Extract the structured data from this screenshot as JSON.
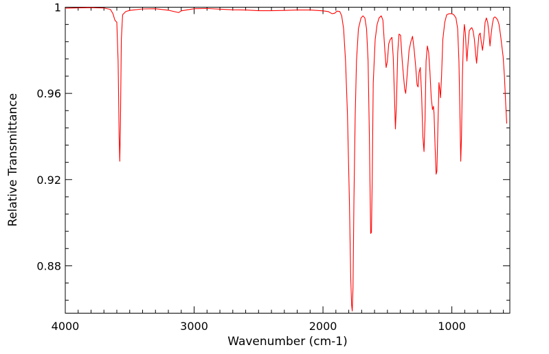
{
  "chart_data": {
    "type": "line",
    "xlabel": "Wavenumber (cm-1)",
    "ylabel": "Relative Transmittance",
    "xlim": [
      4000,
      550
    ],
    "ylim": [
      0.858,
      1.0
    ],
    "x_reversed": true,
    "x_ticks": [
      4000,
      3000,
      2000,
      1000
    ],
    "x_tick_labels": [
      "4000",
      "3000",
      "2000",
      "1000"
    ],
    "y_ticks": [
      1.0,
      0.96,
      0.92,
      0.88
    ],
    "y_tick_labels": [
      "1",
      "0.96",
      "0.92",
      "0.88"
    ],
    "grid": false,
    "legend": "none",
    "series": [
      {
        "color": "#ff0000",
        "points": [
          [
            4000,
            0.9995
          ],
          [
            3900,
            0.9997
          ],
          [
            3800,
            0.9998
          ],
          [
            3700,
            0.9996
          ],
          [
            3650,
            0.999
          ],
          [
            3630,
            0.997
          ],
          [
            3615,
            0.994
          ],
          [
            3600,
            0.993
          ],
          [
            3590,
            0.975
          ],
          [
            3582,
            0.94
          ],
          [
            3577,
            0.9285
          ],
          [
            3572,
            0.945
          ],
          [
            3565,
            0.985
          ],
          [
            3555,
            0.9965
          ],
          [
            3530,
            0.998
          ],
          [
            3500,
            0.9985
          ],
          [
            3400,
            0.9992
          ],
          [
            3300,
            0.9993
          ],
          [
            3200,
            0.9986
          ],
          [
            3120,
            0.9975
          ],
          [
            3100,
            0.9983
          ],
          [
            3000,
            0.9993
          ],
          [
            2900,
            0.9994
          ],
          [
            2800,
            0.9991
          ],
          [
            2700,
            0.9988
          ],
          [
            2600,
            0.9987
          ],
          [
            2500,
            0.9984
          ],
          [
            2400,
            0.9984
          ],
          [
            2300,
            0.9985
          ],
          [
            2200,
            0.9987
          ],
          [
            2100,
            0.9987
          ],
          [
            2000,
            0.9983
          ],
          [
            1960,
            0.998
          ],
          [
            1930,
            0.997
          ],
          [
            1910,
            0.9972
          ],
          [
            1890,
            0.9982
          ],
          [
            1870,
            0.998
          ],
          [
            1855,
            0.996
          ],
          [
            1840,
            0.99
          ],
          [
            1825,
            0.975
          ],
          [
            1810,
            0.95
          ],
          [
            1795,
            0.91
          ],
          [
            1785,
            0.875
          ],
          [
            1778,
            0.862
          ],
          [
            1773,
            0.859
          ],
          [
            1767,
            0.87
          ],
          [
            1760,
            0.91
          ],
          [
            1750,
            0.95
          ],
          [
            1740,
            0.975
          ],
          [
            1725,
            0.99
          ],
          [
            1705,
            0.995
          ],
          [
            1690,
            0.996
          ],
          [
            1675,
            0.995
          ],
          [
            1662,
            0.99
          ],
          [
            1650,
            0.975
          ],
          [
            1640,
            0.94
          ],
          [
            1630,
            0.895
          ],
          [
            1624,
            0.8955
          ],
          [
            1618,
            0.92
          ],
          [
            1610,
            0.965
          ],
          [
            1595,
            0.985
          ],
          [
            1580,
            0.992
          ],
          [
            1565,
            0.995
          ],
          [
            1548,
            0.996
          ],
          [
            1535,
            0.994
          ],
          [
            1520,
            0.98
          ],
          [
            1510,
            0.972
          ],
          [
            1500,
            0.975
          ],
          [
            1490,
            0.983
          ],
          [
            1478,
            0.985
          ],
          [
            1465,
            0.986
          ],
          [
            1455,
            0.977
          ],
          [
            1446,
            0.96
          ],
          [
            1438,
            0.9435
          ],
          [
            1430,
            0.955
          ],
          [
            1420,
            0.979
          ],
          [
            1410,
            0.9875
          ],
          [
            1398,
            0.987
          ],
          [
            1385,
            0.975
          ],
          [
            1375,
            0.968
          ],
          [
            1366,
            0.962
          ],
          [
            1358,
            0.96
          ],
          [
            1345,
            0.97
          ],
          [
            1332,
            0.98
          ],
          [
            1318,
            0.984
          ],
          [
            1305,
            0.9865
          ],
          [
            1292,
            0.98
          ],
          [
            1280,
            0.972
          ],
          [
            1270,
            0.964
          ],
          [
            1262,
            0.963
          ],
          [
            1255,
            0.9695
          ],
          [
            1245,
            0.972
          ],
          [
            1235,
            0.96
          ],
          [
            1225,
            0.94
          ],
          [
            1216,
            0.933
          ],
          [
            1208,
            0.948
          ],
          [
            1200,
            0.975
          ],
          [
            1190,
            0.982
          ],
          [
            1180,
            0.979
          ],
          [
            1170,
            0.97
          ],
          [
            1160,
            0.958
          ],
          [
            1150,
            0.9525
          ],
          [
            1143,
            0.954
          ],
          [
            1138,
            0.9505
          ],
          [
            1130,
            0.935
          ],
          [
            1122,
            0.9225
          ],
          [
            1116,
            0.924
          ],
          [
            1108,
            0.945
          ],
          [
            1100,
            0.965
          ],
          [
            1094,
            0.962
          ],
          [
            1088,
            0.958
          ],
          [
            1080,
            0.968
          ],
          [
            1070,
            0.985
          ],
          [
            1055,
            0.993
          ],
          [
            1040,
            0.9965
          ],
          [
            1020,
            0.997
          ],
          [
            1000,
            0.997
          ],
          [
            985,
            0.9965
          ],
          [
            968,
            0.995
          ],
          [
            955,
            0.99
          ],
          [
            945,
            0.975
          ],
          [
            937,
            0.95
          ],
          [
            931,
            0.9285
          ],
          [
            925,
            0.94
          ],
          [
            918,
            0.968
          ],
          [
            910,
            0.985
          ],
          [
            903,
            0.992
          ],
          [
            895,
            0.988
          ],
          [
            888,
            0.98
          ],
          [
            883,
            0.975
          ],
          [
            875,
            0.982
          ],
          [
            865,
            0.989
          ],
          [
            855,
            0.99
          ],
          [
            845,
            0.9905
          ],
          [
            835,
            0.989
          ],
          [
            825,
            0.985
          ],
          [
            815,
            0.978
          ],
          [
            808,
            0.974
          ],
          [
            800,
            0.98
          ],
          [
            790,
            0.987
          ],
          [
            780,
            0.988
          ],
          [
            772,
            0.984
          ],
          [
            762,
            0.98
          ],
          [
            752,
            0.985
          ],
          [
            742,
            0.993
          ],
          [
            732,
            0.995
          ],
          [
            722,
            0.993
          ],
          [
            712,
            0.988
          ],
          [
            704,
            0.982
          ],
          [
            696,
            0.987
          ],
          [
            686,
            0.992
          ],
          [
            676,
            0.995
          ],
          [
            666,
            0.9955
          ],
          [
            656,
            0.995
          ],
          [
            644,
            0.994
          ],
          [
            634,
            0.992
          ],
          [
            622,
            0.987
          ],
          [
            612,
            0.982
          ],
          [
            602,
            0.977
          ],
          [
            592,
            0.968
          ],
          [
            582,
            0.955
          ],
          [
            574,
            0.946
          ]
        ]
      }
    ]
  }
}
